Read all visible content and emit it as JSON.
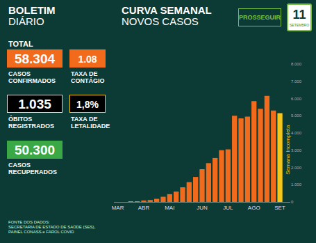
{
  "header": {
    "title": [
      "BOLETIM",
      "DIÁRIO"
    ],
    "logo": "PROSSEGUIR",
    "date": {
      "day": "11",
      "month": "SETEMBRO"
    }
  },
  "stats": {
    "heading": "TOTAL",
    "items": [
      {
        "value": "58.304",
        "label": [
          "CASOS",
          "CONFIRMADOS"
        ]
      },
      {
        "value": "1.08",
        "label": [
          "TAXA DE",
          "CONTÁGIO"
        ]
      },
      {
        "value": "1.035",
        "label": [
          "ÓBITOS",
          "REGISTRADOS"
        ]
      },
      {
        "value": "1,8%",
        "label": [
          "TAXA DE",
          "LETALIDADE"
        ]
      },
      {
        "value": "50.300",
        "label": [
          "CASOS",
          "RECUPERADOS"
        ]
      }
    ]
  },
  "footer": [
    "FONTE DOS DADOS:",
    "SECRETARIA DE ESTADO DE SAÚDE (SES),",
    "PAINEL CONASS e FAROL COVID"
  ],
  "chart_data": {
    "type": "bar",
    "title": "CURVA SEMANAL",
    "subtitle": "NOVOS CASOS",
    "categories": [
      "MAR",
      null,
      null,
      null,
      "ABR",
      null,
      null,
      null,
      "MAI",
      null,
      null,
      null,
      null,
      "JUN",
      null,
      null,
      null,
      "JUL",
      null,
      null,
      null,
      "AGO",
      null,
      null,
      null,
      "SET"
    ],
    "values": [
      0,
      0,
      10,
      30,
      60,
      110,
      180,
      300,
      450,
      600,
      850,
      1150,
      1450,
      1900,
      2250,
      2550,
      3000,
      3050,
      5000,
      4850,
      4950,
      5850,
      5400,
      6150,
      5300,
      5150
    ],
    "colors": [
      "#f26b1d",
      "#f26b1d",
      "#f26b1d",
      "#f26b1d",
      "#f26b1d",
      "#f26b1d",
      "#f26b1d",
      "#f26b1d",
      "#f26b1d",
      "#f26b1d",
      "#f26b1d",
      "#f26b1d",
      "#f26b1d",
      "#f26b1d",
      "#f26b1d",
      "#f26b1d",
      "#f26b1d",
      "#f26b1d",
      "#f26b1d",
      "#f26b1d",
      "#f26b1d",
      "#f26b1d",
      "#f26b1d",
      "#f26b1d",
      "#f26b1d",
      "#f5c518"
    ],
    "ylim": [
      0,
      8000
    ],
    "yticks": [
      0,
      {
        "value": 1000,
        "label": "1.000"
      },
      {
        "value": 2000,
        "label": "2.000"
      },
      {
        "value": 3000,
        "label": "3.000"
      },
      {
        "value": 4000,
        "label": "4.000"
      },
      {
        "value": 5000,
        "label": "5.000"
      },
      {
        "value": 6000,
        "label": "6.000"
      },
      {
        "value": 7000,
        "label": "7.000"
      },
      {
        "value": 8000,
        "label": "8.000"
      }
    ],
    "grid": false,
    "annotations": [
      {
        "text": "Semana Incompleta",
        "category": 25
      }
    ]
  }
}
